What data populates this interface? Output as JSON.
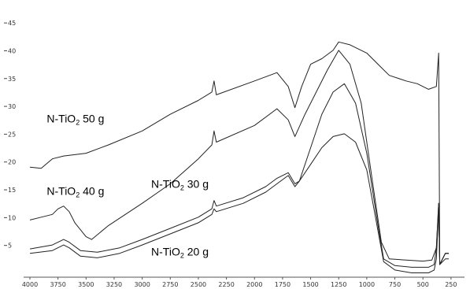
{
  "chart_data": {
    "type": "line",
    "title": "",
    "xlabel": "",
    "ylabel": "",
    "xlim": [
      4000,
      200
    ],
    "ylim": [
      0,
      47
    ],
    "x_ticks": [
      "4000",
      "3750",
      "3500",
      "3250",
      "3000",
      "2750",
      "2500",
      "2250",
      "2000",
      "1750",
      "1500",
      "1250",
      "1000",
      "750",
      "500",
      "250"
    ],
    "y_ticks": [
      "45",
      "40",
      "35",
      "30",
      "25",
      "20",
      "15",
      "10",
      "5"
    ],
    "grid": false,
    "series": [
      {
        "name": "N-TiO₂ 50 g",
        "label_parts": [
          "N-TiO",
          "2",
          " 50 g"
        ],
        "points": [
          [
            4000,
            19.5
          ],
          [
            3900,
            19.3
          ],
          [
            3800,
            21
          ],
          [
            3700,
            21.5
          ],
          [
            3500,
            22
          ],
          [
            3300,
            23.5
          ],
          [
            3000,
            26
          ],
          [
            2750,
            29
          ],
          [
            2500,
            31.5
          ],
          [
            2380,
            33
          ],
          [
            2360,
            35
          ],
          [
            2340,
            32.5
          ],
          [
            2000,
            35
          ],
          [
            1800,
            36.5
          ],
          [
            1700,
            34
          ],
          [
            1640,
            30.2
          ],
          [
            1580,
            34
          ],
          [
            1500,
            38
          ],
          [
            1400,
            39
          ],
          [
            1300,
            40.5
          ],
          [
            1250,
            42
          ],
          [
            1150,
            41.5
          ],
          [
            1000,
            40
          ],
          [
            900,
            38
          ],
          [
            800,
            36
          ],
          [
            650,
            35
          ],
          [
            550,
            34.5
          ],
          [
            450,
            33.5
          ],
          [
            380,
            34
          ],
          [
            360,
            40
          ],
          [
            350,
            2
          ],
          [
            300,
            4
          ],
          [
            270,
            4
          ]
        ]
      },
      {
        "name": "N-TiO₂ 40 g",
        "label_parts": [
          "N-TiO",
          "2",
          " 40 g"
        ],
        "points": [
          [
            4000,
            10
          ],
          [
            3900,
            10.5
          ],
          [
            3800,
            11
          ],
          [
            3750,
            12
          ],
          [
            3700,
            12.5
          ],
          [
            3650,
            11.5
          ],
          [
            3600,
            9.5
          ],
          [
            3500,
            7
          ],
          [
            3450,
            6.5
          ],
          [
            3300,
            9
          ],
          [
            3000,
            13
          ],
          [
            2750,
            16.5
          ],
          [
            2500,
            21
          ],
          [
            2380,
            23.5
          ],
          [
            2360,
            26
          ],
          [
            2340,
            24
          ],
          [
            2000,
            27
          ],
          [
            1800,
            30
          ],
          [
            1700,
            28
          ],
          [
            1640,
            25
          ],
          [
            1550,
            29
          ],
          [
            1450,
            33
          ],
          [
            1350,
            37
          ],
          [
            1250,
            40.5
          ],
          [
            1150,
            38
          ],
          [
            1050,
            31
          ],
          [
            950,
            17
          ],
          [
            870,
            6
          ],
          [
            800,
            3
          ],
          [
            650,
            2.8
          ],
          [
            500,
            2.6
          ],
          [
            420,
            2.8
          ],
          [
            380,
            5
          ],
          [
            360,
            13
          ],
          [
            350,
            2
          ],
          [
            300,
            4
          ],
          [
            270,
            4
          ]
        ]
      },
      {
        "name": "N-TiO₂ 30 g",
        "label_parts": [
          "N-TiO",
          "2",
          " 30 g"
        ],
        "points": [
          [
            4000,
            4.8
          ],
          [
            3800,
            5.5
          ],
          [
            3700,
            6.5
          ],
          [
            3650,
            6
          ],
          [
            3550,
            4.5
          ],
          [
            3400,
            4.2
          ],
          [
            3200,
            5
          ],
          [
            3000,
            6.5
          ],
          [
            2750,
            8.5
          ],
          [
            2500,
            10.5
          ],
          [
            2380,
            12
          ],
          [
            2360,
            13.5
          ],
          [
            2340,
            12.5
          ],
          [
            2100,
            14
          ],
          [
            1900,
            16
          ],
          [
            1800,
            17.5
          ],
          [
            1700,
            18.5
          ],
          [
            1640,
            16.5
          ],
          [
            1600,
            17
          ],
          [
            1500,
            23
          ],
          [
            1400,
            29
          ],
          [
            1300,
            33
          ],
          [
            1200,
            34.5
          ],
          [
            1100,
            31
          ],
          [
            1000,
            22
          ],
          [
            900,
            9
          ],
          [
            850,
            3
          ],
          [
            750,
            1.8
          ],
          [
            600,
            1.5
          ],
          [
            450,
            1.5
          ],
          [
            400,
            2
          ],
          [
            380,
            5
          ],
          [
            360,
            13
          ],
          [
            350,
            2
          ],
          [
            300,
            4
          ],
          [
            270,
            4
          ]
        ]
      },
      {
        "name": "N-TiO₂ 20 g",
        "label_parts": [
          "N-TiO",
          "2",
          " 20 g"
        ],
        "points": [
          [
            4000,
            4
          ],
          [
            3800,
            4.5
          ],
          [
            3700,
            5.5
          ],
          [
            3650,
            5
          ],
          [
            3550,
            3.5
          ],
          [
            3400,
            3.2
          ],
          [
            3200,
            4
          ],
          [
            3000,
            5.5
          ],
          [
            2750,
            7.5
          ],
          [
            2500,
            9.5
          ],
          [
            2380,
            11
          ],
          [
            2360,
            12
          ],
          [
            2340,
            11.5
          ],
          [
            2100,
            13
          ],
          [
            1900,
            15
          ],
          [
            1800,
            16.5
          ],
          [
            1700,
            18
          ],
          [
            1640,
            16
          ],
          [
            1600,
            17
          ],
          [
            1500,
            20
          ],
          [
            1400,
            23
          ],
          [
            1300,
            25
          ],
          [
            1200,
            25.5
          ],
          [
            1100,
            24
          ],
          [
            1000,
            19
          ],
          [
            900,
            8
          ],
          [
            850,
            2.5
          ],
          [
            750,
            1
          ],
          [
            600,
            0.5
          ],
          [
            450,
            0.5
          ],
          [
            400,
            1
          ],
          [
            380,
            3
          ],
          [
            360,
            12
          ],
          [
            350,
            2
          ],
          [
            300,
            3
          ],
          [
            270,
            3
          ]
        ]
      }
    ],
    "label_positions": {
      "N-TiO₂ 50 g": [
        3850,
        27.5
      ],
      "N-TiO₂ 40 g": [
        3850,
        14.5
      ],
      "N-TiO₂ 30 g": [
        2920,
        15.8
      ],
      "N-TiO₂ 20 g": [
        2920,
        3.6
      ]
    }
  }
}
